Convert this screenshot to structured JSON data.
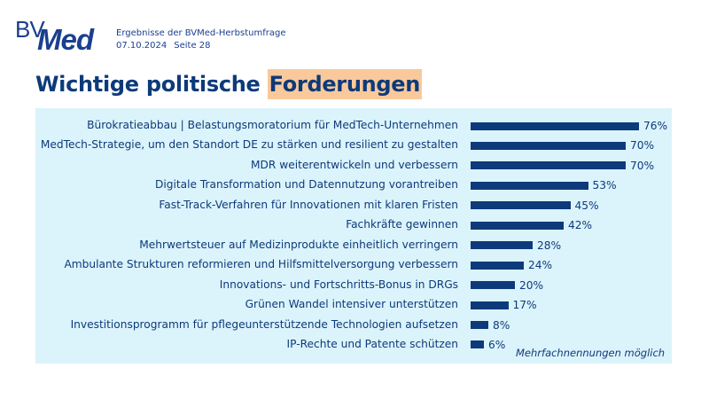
{
  "header": {
    "logo_text": "BVMed",
    "subtitle": "Ergebnisse der BVMed-Herbstumfrage",
    "date": "07.10.2024",
    "page": "Seite 28"
  },
  "title": {
    "part1": "Wichtige politische",
    "highlight": "Forderungen"
  },
  "colors": {
    "bar": "#0d3a7a",
    "panel": "#dbf3fb",
    "highlight": "#f9c99b"
  },
  "chart_data": {
    "type": "bar",
    "orientation": "horizontal",
    "categories": [
      "Bürokratieabbau | Belastungsmoratorium für MedTech-Unternehmen",
      "MedTech-Strategie, um den Standort DE zu stärken und resilient zu gestalten",
      "MDR weiterentwickeln und verbessern",
      "Digitale Transformation und Datennutzung vorantreiben",
      "Fast-Track-Verfahren für Innovationen mit klaren Fristen",
      "Fachkräfte gewinnen",
      "Mehrwertsteuer auf Medizinprodukte einheitlich verringern",
      "Ambulante Strukturen reformieren und Hilfsmittelversorgung verbessern",
      "Innovations- und Fortschritts-Bonus in DRGs",
      "Grünen Wandel intensiver unterstützen",
      "Investitionsprogramm für pflegeunterstützende Technologien aufsetzen",
      "IP-Rechte und Patente schützen"
    ],
    "values": [
      76,
      70,
      70,
      53,
      45,
      42,
      28,
      24,
      20,
      17,
      8,
      6
    ],
    "value_labels": [
      "76%",
      "70%",
      "70%",
      "53%",
      "45%",
      "42%",
      "28%",
      "24%",
      "20%",
      "17%",
      "8%",
      "6%"
    ],
    "unit": "%",
    "xlim": [
      0,
      100
    ],
    "grid": false,
    "annotation": "Mehrfachnennungen möglich"
  }
}
